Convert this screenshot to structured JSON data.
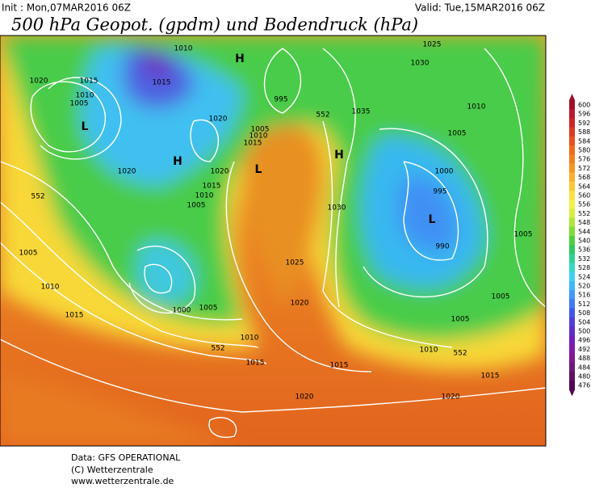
{
  "header": {
    "init": "Init : Mon,07MAR2016 06Z",
    "valid": "Valid: Tue,15MAR2016 06Z",
    "title": "500 hPa Geopot. (gpdm) und Bodendruck (hPa)"
  },
  "map_labels": [
    "1010",
    "H",
    "1020",
    "1015",
    "1015",
    "1010",
    "1005",
    "L",
    "995",
    "552",
    "1035",
    "1025",
    "1030",
    "1010",
    "1020",
    "1005",
    "1010",
    "1015",
    "1005",
    "H",
    "L",
    "H",
    "1020",
    "1020",
    "1000",
    "1015",
    "1010",
    "1005",
    "995",
    "552",
    "1030",
    "L",
    "1005",
    "990",
    "1005",
    "1025",
    "1010",
    "1020",
    "1000",
    "1005",
    "1005",
    "1005",
    "1015",
    "1010",
    "552",
    "1010",
    "552",
    "1015",
    "1015",
    "1015",
    "1020",
    "1020"
  ],
  "colorbar": {
    "labels": [
      600,
      596,
      592,
      588,
      584,
      580,
      576,
      572,
      568,
      564,
      560,
      556,
      552,
      548,
      544,
      540,
      536,
      532,
      528,
      524,
      520,
      516,
      512,
      508,
      504,
      500,
      496,
      492,
      488,
      484,
      480,
      476
    ],
    "colors": [
      "#a0102a",
      "#b81830",
      "#cc2428",
      "#de3820",
      "#e8521c",
      "#ee6a1c",
      "#f08020",
      "#f49624",
      "#f8b030",
      "#fcc83a",
      "#fce040",
      "#f2f048",
      "#d4ee40",
      "#aee63a",
      "#80dc36",
      "#50d040",
      "#30c860",
      "#30d098",
      "#38d8c8",
      "#40d0f0",
      "#40b8f8",
      "#4098f8",
      "#4078f0",
      "#4058e8",
      "#5040d8",
      "#6030c8",
      "#7020b8",
      "#8018a8",
      "#801890",
      "#701878",
      "#601060",
      "#500850"
    ]
  },
  "footer": [
    "Data: GFS OPERATIONAL",
    "(C) Wetterzentrale",
    "www.wetterzentrale.de"
  ]
}
